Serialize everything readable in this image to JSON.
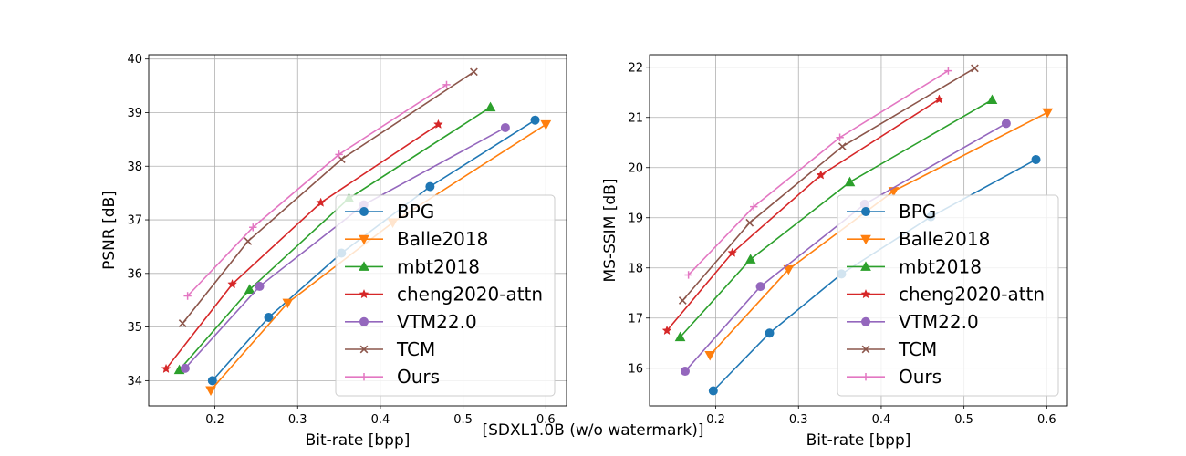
{
  "caption": "[SDXL1.0B (w/o watermark)]",
  "colors": {
    "BPG": "#1f77b4",
    "Balle2018": "#ff7f0e",
    "mbt2018": "#2ca02c",
    "cheng2020-attn": "#d62728",
    "VTM22.0": "#9467bd",
    "TCM": "#8c564b",
    "Ours": "#e377c2"
  },
  "markers": {
    "BPG": "circle",
    "Balle2018": "triangle-down",
    "mbt2018": "triangle-up",
    "cheng2020-attn": "star",
    "VTM22.0": "circle",
    "TCM": "x",
    "Ours": "plus"
  },
  "chart_data": [
    {
      "type": "line",
      "title": "",
      "xlabel": "Bit-rate [bpp]",
      "ylabel": "PSNR [dB]",
      "xlim": [
        0.12,
        0.625
      ],
      "ylim": [
        33.53,
        40.08
      ],
      "xticks": [
        0.2,
        0.3,
        0.4,
        0.5,
        0.6
      ],
      "xtick_labels": [
        "0.2",
        "0.3",
        "0.4",
        "0.5",
        "0.6"
      ],
      "yticks": [
        34,
        35,
        36,
        37,
        38,
        39,
        40
      ],
      "ytick_labels": [
        "34",
        "35",
        "36",
        "37",
        "38",
        "39",
        "40"
      ],
      "grid": true,
      "legend_position": "lower-right",
      "series": [
        {
          "name": "BPG",
          "x": [
            0.197,
            0.265,
            0.353,
            0.46,
            0.587
          ],
          "y": [
            34.0,
            35.18,
            36.38,
            37.62,
            38.86
          ]
        },
        {
          "name": "Balle2018",
          "x": [
            0.195,
            0.288,
            0.415,
            0.6
          ],
          "y": [
            33.82,
            35.45,
            36.95,
            38.78
          ]
        },
        {
          "name": "mbt2018",
          "x": [
            0.157,
            0.242,
            0.362,
            0.533
          ],
          "y": [
            34.2,
            35.7,
            37.4,
            39.1
          ]
        },
        {
          "name": "cheng2020-attn",
          "x": [
            0.141,
            0.221,
            0.328,
            0.47
          ],
          "y": [
            34.22,
            35.8,
            37.32,
            38.78
          ]
        },
        {
          "name": "VTM22.0",
          "x": [
            0.164,
            0.254,
            0.38,
            0.551
          ],
          "y": [
            34.23,
            35.76,
            37.28,
            38.72
          ]
        },
        {
          "name": "TCM",
          "x": [
            0.161,
            0.24,
            0.353,
            0.513
          ],
          "y": [
            35.07,
            36.6,
            38.13,
            39.76
          ]
        },
        {
          "name": "Ours",
          "x": [
            0.167,
            0.246,
            0.35,
            0.48
          ],
          "y": [
            35.58,
            36.86,
            38.22,
            39.52
          ]
        }
      ]
    },
    {
      "type": "line",
      "title": "",
      "xlabel": "Bit-rate [bpp]",
      "ylabel": "MS-SSIM [dB]",
      "xlim": [
        0.12,
        0.625
      ],
      "ylim": [
        15.25,
        22.25
      ],
      "xticks": [
        0.2,
        0.3,
        0.4,
        0.5,
        0.6
      ],
      "xtick_labels": [
        "0.2",
        "0.3",
        "0.4",
        "0.5",
        "0.6"
      ],
      "yticks": [
        16,
        17,
        18,
        19,
        20,
        21,
        22
      ],
      "ytick_labels": [
        "16",
        "17",
        "18",
        "19",
        "20",
        "21",
        "22"
      ],
      "grid": true,
      "legend_position": "lower-right",
      "series": [
        {
          "name": "BPG",
          "x": [
            0.197,
            0.265,
            0.352,
            0.46,
            0.587
          ],
          "y": [
            15.55,
            16.7,
            17.88,
            19.02,
            20.16
          ]
        },
        {
          "name": "Balle2018",
          "x": [
            0.193,
            0.288,
            0.415,
            0.601
          ],
          "y": [
            16.26,
            17.97,
            19.53,
            21.1
          ]
        },
        {
          "name": "mbt2018",
          "x": [
            0.157,
            0.242,
            0.362,
            0.534
          ],
          "y": [
            16.62,
            18.17,
            19.71,
            21.35
          ]
        },
        {
          "name": "cheng2020-attn",
          "x": [
            0.141,
            0.22,
            0.327,
            0.47
          ],
          "y": [
            16.75,
            18.3,
            19.85,
            21.36
          ]
        },
        {
          "name": "VTM22.0",
          "x": [
            0.163,
            0.254,
            0.38,
            0.551
          ],
          "y": [
            15.94,
            17.63,
            19.27,
            20.88
          ]
        },
        {
          "name": "TCM",
          "x": [
            0.16,
            0.241,
            0.353,
            0.513
          ],
          "y": [
            17.35,
            18.9,
            20.42,
            21.98
          ]
        },
        {
          "name": "Ours",
          "x": [
            0.167,
            0.246,
            0.35,
            0.481
          ],
          "y": [
            17.86,
            19.22,
            20.6,
            21.93
          ]
        }
      ]
    }
  ]
}
